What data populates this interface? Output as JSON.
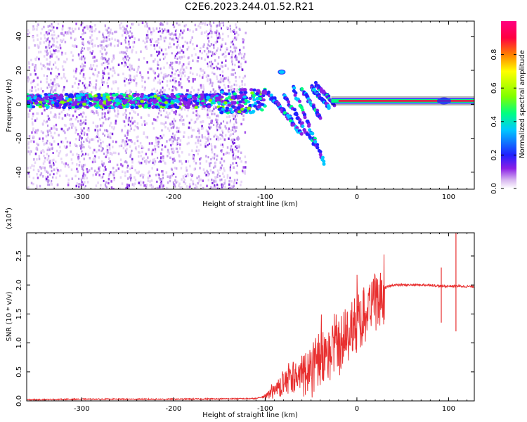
{
  "title": "C2E6.2023.244.01.52.R21",
  "chart_data": [
    {
      "type": "heatmap",
      "xlabel": "Height of straight line (km)",
      "ylabel": "Frequency (Hz)",
      "xlim": [
        -360,
        128
      ],
      "ylim": [
        -50,
        49
      ],
      "x_ticks": [
        -300,
        -200,
        -100,
        0,
        100
      ],
      "y_ticks": [
        -40,
        -20,
        0,
        20,
        40
      ],
      "colorbar": {
        "label": "Normalized spectral amplitude",
        "range": [
          0,
          1
        ],
        "ticks": [
          0.0,
          0.2,
          0.4,
          0.6,
          0.8
        ],
        "colors": [
          "#ffffff",
          "#d8b8f0",
          "#8a20e6",
          "#2020ff",
          "#00c8ff",
          "#00ff80",
          "#80ff00",
          "#ffff00",
          "#ff8000",
          "#ff0040",
          "#ff0080"
        ]
      },
      "features": [
        {
          "name": "carrier",
          "x": [
            -360,
            128
          ],
          "y": 2,
          "amplitude": 0.95
        },
        {
          "name": "noisy-band",
          "x": [
            -360,
            -100
          ],
          "y_center": 2,
          "amplitude": 0.35
        },
        {
          "name": "dispersed-tones",
          "x": [
            -100,
            -25
          ],
          "y_range": [
            -35,
            20
          ],
          "amplitude": 0.4
        }
      ]
    },
    {
      "type": "line",
      "xlabel": "Height of straight line (km)",
      "ylabel": "SNR (10 * v/v)",
      "y_multiplier": "(x10^4)",
      "multiplier_base": "(x10",
      "multiplier_exp": "4",
      "multiplier_close": ")",
      "xlim": [
        -360,
        128
      ],
      "ylim": [
        0,
        2.9
      ],
      "x_ticks": [
        -300,
        -200,
        -100,
        0,
        100
      ],
      "y_ticks": [
        0.0,
        0.5,
        1.0,
        1.5,
        2.0,
        2.5
      ],
      "color": "#e83030",
      "envelope": [
        [
          -360,
          0.02
        ],
        [
          -300,
          0.03
        ],
        [
          -200,
          0.03
        ],
        [
          -110,
          0.04
        ],
        [
          -100,
          0.08
        ],
        [
          -90,
          0.2
        ],
        [
          -80,
          0.35
        ],
        [
          -70,
          0.45
        ],
        [
          -60,
          0.55
        ],
        [
          -50,
          0.65
        ],
        [
          -40,
          0.75
        ],
        [
          -30,
          0.85
        ],
        [
          -20,
          1.1
        ],
        [
          -10,
          1.3
        ],
        [
          0,
          1.45
        ],
        [
          10,
          1.7
        ],
        [
          20,
          1.85
        ],
        [
          30,
          1.95
        ],
        [
          40,
          2.0
        ],
        [
          60,
          2.0
        ],
        [
          80,
          2.0
        ],
        [
          90,
          1.98
        ],
        [
          100,
          1.98
        ],
        [
          110,
          1.98
        ],
        [
          128,
          1.97
        ]
      ],
      "spikes": [
        {
          "x": 92,
          "low": 1.35,
          "high": 2.3
        },
        {
          "x": 108,
          "low": 1.2,
          "high": 2.9
        }
      ]
    }
  ]
}
